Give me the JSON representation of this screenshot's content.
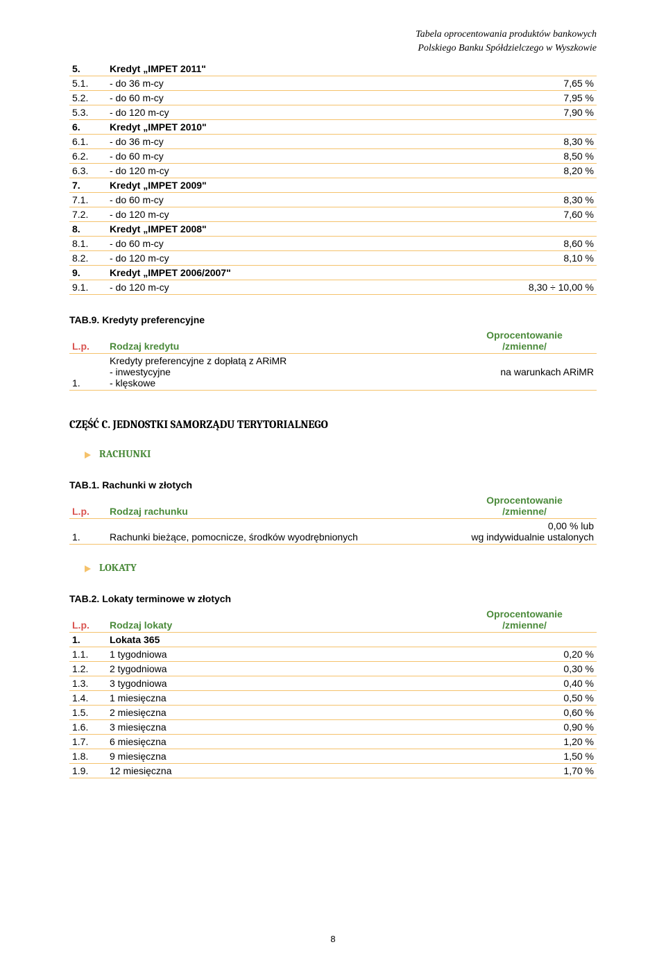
{
  "header": {
    "line1": "Tabela oprocentowania produktów bankowych",
    "line2": "Polskiego Banku Spółdzielczego w Wyszkowie"
  },
  "table_top": {
    "rows": [
      {
        "num": "5.",
        "label": "Kredyt „IMPET 2011\"",
        "val": "",
        "bold": true
      },
      {
        "num": "5.1.",
        "label": "- do 36 m-cy",
        "val": "7,65 %"
      },
      {
        "num": "5.2.",
        "label": "- do 60 m-cy",
        "val": "7,95 %"
      },
      {
        "num": "5.3.",
        "label": "- do 120 m-cy",
        "val": "7,90 %"
      },
      {
        "num": "6.",
        "label": "Kredyt „IMPET 2010\"",
        "val": "",
        "bold": true
      },
      {
        "num": "6.1.",
        "label": "- do 36 m-cy",
        "val": "8,30 %"
      },
      {
        "num": "6.2.",
        "label": "- do 60 m-cy",
        "val": "8,50 %"
      },
      {
        "num": "6.3.",
        "label": "- do 120 m-cy",
        "val": "8,20 %"
      },
      {
        "num": "7.",
        "label": "Kredyt „IMPET 2009\"",
        "val": "",
        "bold": true
      },
      {
        "num": "7.1.",
        "label": "- do 60 m-cy",
        "val": "8,30 %"
      },
      {
        "num": "7.2.",
        "label": "- do 120 m-cy",
        "val": "7,60 %"
      },
      {
        "num": "8.",
        "label": "Kredyt „IMPET 2008\"",
        "val": "",
        "bold": true
      },
      {
        "num": "8.1.",
        "label": "- do 60 m-cy",
        "val": "8,60 %"
      },
      {
        "num": "8.2.",
        "label": "- do 120 m-cy",
        "val": "8,10 %"
      },
      {
        "num": "9.",
        "label": "Kredyt „IMPET 2006/2007\"",
        "val": "",
        "bold": true
      },
      {
        "num": "9.1.",
        "label": "- do 120 m-cy",
        "val": "8,30 ÷ 10,00 %"
      }
    ]
  },
  "tab9": {
    "title": "TAB.9. Kredyty preferencyjne",
    "head_lp": "L.p.",
    "head_label": "Rodzaj kredytu",
    "head_val": "Oprocentowanie\n/zmienne/",
    "row1_num": "1.",
    "row1_label": "Kredyty preferencyjne z dopłatą z ARiMR\n- inwestycyjne\n- klęskowe",
    "row1_val": "na warunkach ARiMR"
  },
  "sectionC": {
    "title": "CZĘŚĆ C. JEDNOSTKI SAMORZĄDU TERYTORIALNEGO",
    "rachunki": "RACHUNKI",
    "tab1": {
      "title": "TAB.1. Rachunki w złotych",
      "head_lp": "L.p.",
      "head_label": "Rodzaj rachunku",
      "head_val": "Oprocentowanie\n/zmienne/",
      "row1_num": "1.",
      "row1_label": "Rachunki bieżące, pomocnicze, środków wyodrębnionych",
      "row1_val": "0,00 % lub\nwg indywidualnie ustalonych"
    },
    "lokaty": "LOKATY",
    "tab2": {
      "title": "TAB.2. Lokaty terminowe w złotych",
      "head_lp": "L.p.",
      "head_label": "Rodzaj lokaty",
      "head_val": "Oprocentowanie\n/zmienne/",
      "rows": [
        {
          "num": "1.",
          "label": "Lokata 365",
          "val": "",
          "bold": true
        },
        {
          "num": "1.1.",
          "label": "1 tygodniowa",
          "val": "0,20 %"
        },
        {
          "num": "1.2.",
          "label": "2 tygodniowa",
          "val": "0,30 %"
        },
        {
          "num": "1.3.",
          "label": "3 tygodniowa",
          "val": "0,40 %"
        },
        {
          "num": "1.4.",
          "label": "1 miesięczna",
          "val": "0,50 %"
        },
        {
          "num": "1.5.",
          "label": "2 miesięczna",
          "val": "0,60 %"
        },
        {
          "num": "1.6.",
          "label": "3 miesięczna",
          "val": "0,90 %"
        },
        {
          "num": "1.7.",
          "label": "6 miesięczna",
          "val": "1,20 %"
        },
        {
          "num": "1.8.",
          "label": "9 miesięczna",
          "val": "1,50 %"
        },
        {
          "num": "1.9.",
          "label": "12 miesięczna",
          "val": "1,70 %"
        }
      ]
    }
  },
  "page_num": "8",
  "colors": {
    "rule": "#f5c26b",
    "red": "#d9534f",
    "green": "#4a8a3a"
  }
}
